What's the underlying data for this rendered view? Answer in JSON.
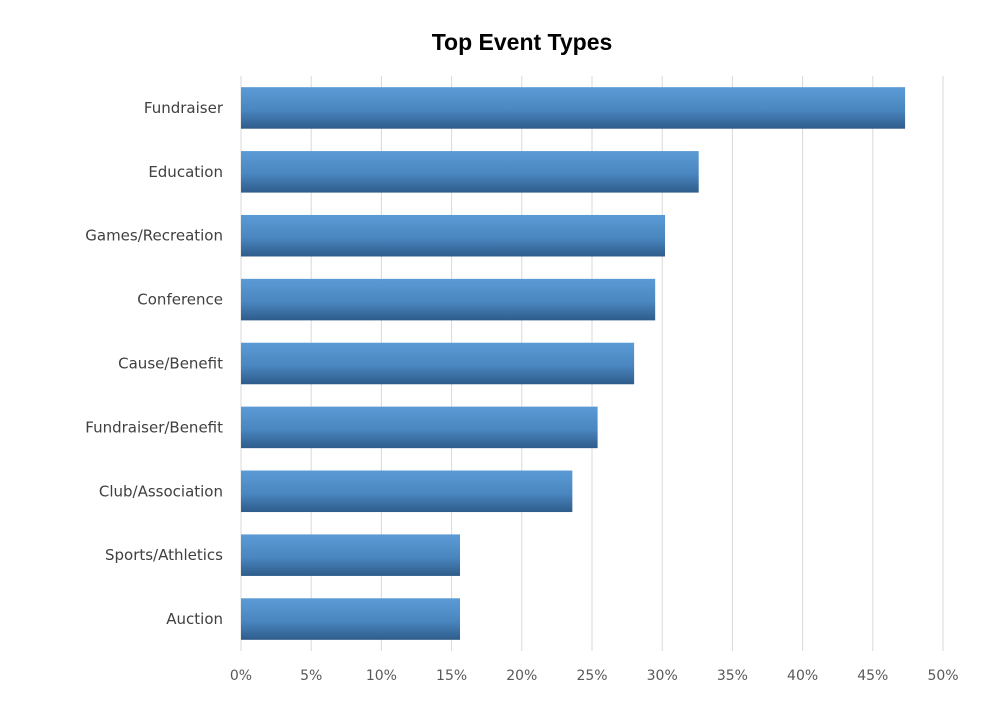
{
  "chart_data": {
    "type": "bar",
    "orientation": "horizontal",
    "title": "Top Event Types",
    "xlabel": "",
    "ylabel": "",
    "categories": [
      "Fundraiser",
      "Education",
      "Games/Recreation",
      "Conference",
      "Cause/Benefit",
      "Fundraiser/Benefit",
      "Club/Association",
      "Sports/Athletics",
      "Auction"
    ],
    "values": [
      47.3,
      32.6,
      30.2,
      29.5,
      28.0,
      25.4,
      23.6,
      15.6,
      15.6
    ],
    "xlim": [
      0,
      50
    ],
    "x_ticks": [
      "0%",
      "5%",
      "10%",
      "15%",
      "20%",
      "25%",
      "30%",
      "35%",
      "40%",
      "45%",
      "50%"
    ],
    "grid": true,
    "legend": "none",
    "bar_color": "#3f78b5"
  }
}
